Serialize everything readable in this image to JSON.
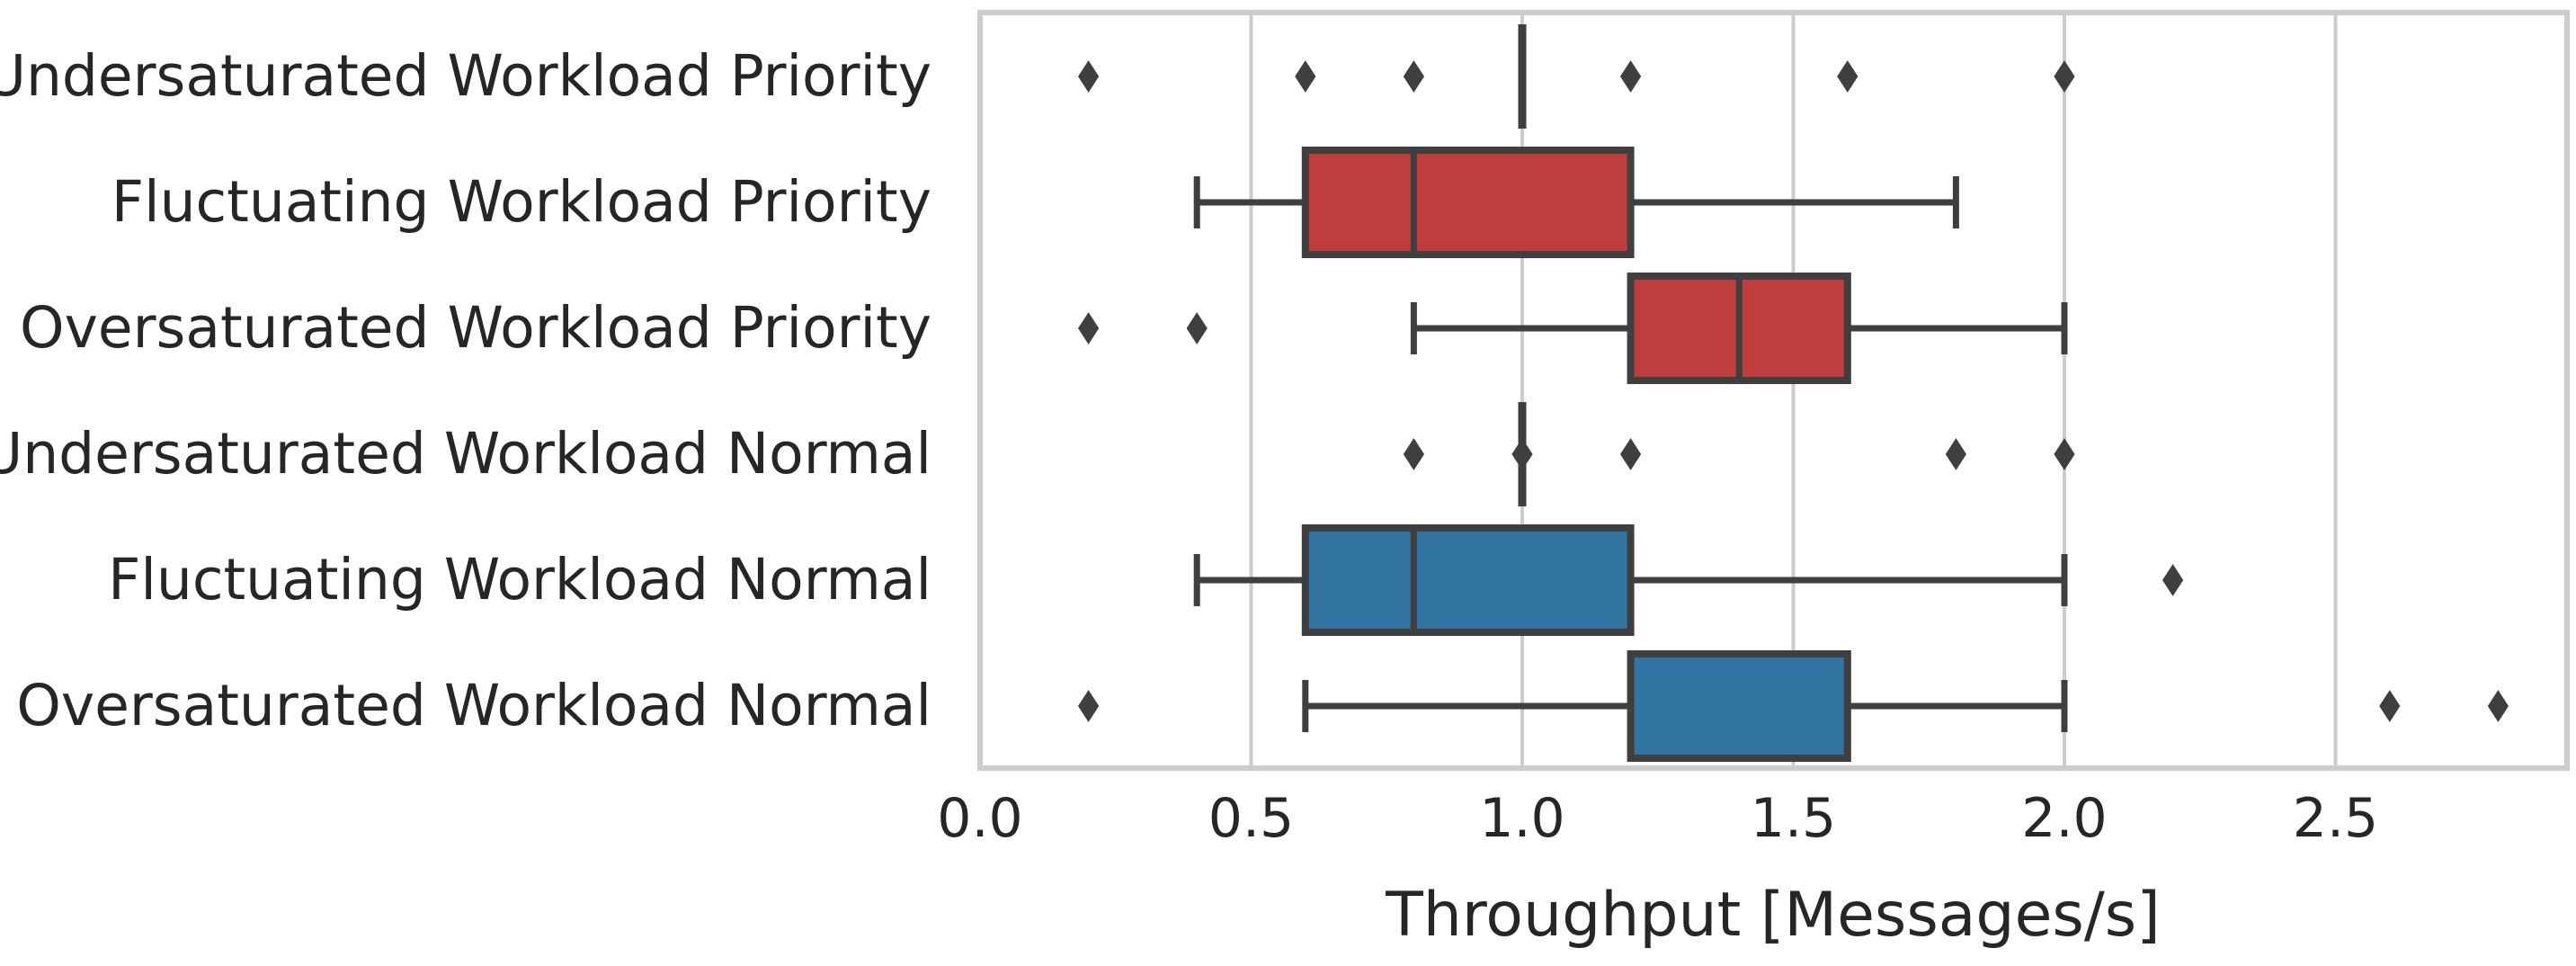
{
  "chart_data": {
    "type": "boxplot",
    "orientation": "horizontal",
    "xlabel": "Throughput [Messages/s]",
    "xlim": [
      0.0,
      2.85
    ],
    "xticks": [
      "0.0",
      "0.5",
      "1.0",
      "1.5",
      "2.0",
      "2.5"
    ],
    "grid": "vertical",
    "legend": "none",
    "categories": [
      "Undersaturated Workload Priority",
      "Fluctuating Workload Priority",
      "Oversaturated Workload Priority",
      "Undersaturated Workload Normal",
      "Fluctuating Workload Normal",
      "Oversaturated Workload Normal"
    ],
    "boxes": [
      {
        "q1": 1.0,
        "median": 1.0,
        "q3": 1.0,
        "whisker_low": 1.0,
        "whisker_high": 1.0,
        "outliers": [
          0.2,
          0.6,
          0.8,
          1.2,
          1.6,
          2.0
        ],
        "color": "#c03d3e"
      },
      {
        "q1": 0.6,
        "median": 0.8,
        "q3": 1.2,
        "whisker_low": 0.4,
        "whisker_high": 1.8,
        "outliers": [],
        "color": "#c03d3e"
      },
      {
        "q1": 1.2,
        "median": 1.4,
        "q3": 1.6,
        "whisker_low": 0.8,
        "whisker_high": 2.0,
        "outliers": [
          0.2,
          0.4
        ],
        "color": "#c03d3e"
      },
      {
        "q1": 1.0,
        "median": 1.0,
        "q3": 1.0,
        "whisker_low": 1.0,
        "whisker_high": 1.0,
        "outliers": [
          0.8,
          1.0,
          1.2,
          1.8,
          2.0
        ],
        "color": "#3274a1"
      },
      {
        "q1": 0.6,
        "median": 0.8,
        "q3": 1.2,
        "whisker_low": 0.4,
        "whisker_high": 2.0,
        "outliers": [
          2.2
        ],
        "color": "#3274a1"
      },
      {
        "q1": 1.2,
        "median": 1.6,
        "q3": 1.6,
        "whisker_low": 0.6,
        "whisker_high": 2.0,
        "outliers": [
          0.2,
          2.6,
          2.8
        ],
        "color": "#3274a1"
      }
    ],
    "colors": {
      "line": "#3f3f3f",
      "grid": "#cccccc",
      "frame": "#cccccc"
    }
  }
}
